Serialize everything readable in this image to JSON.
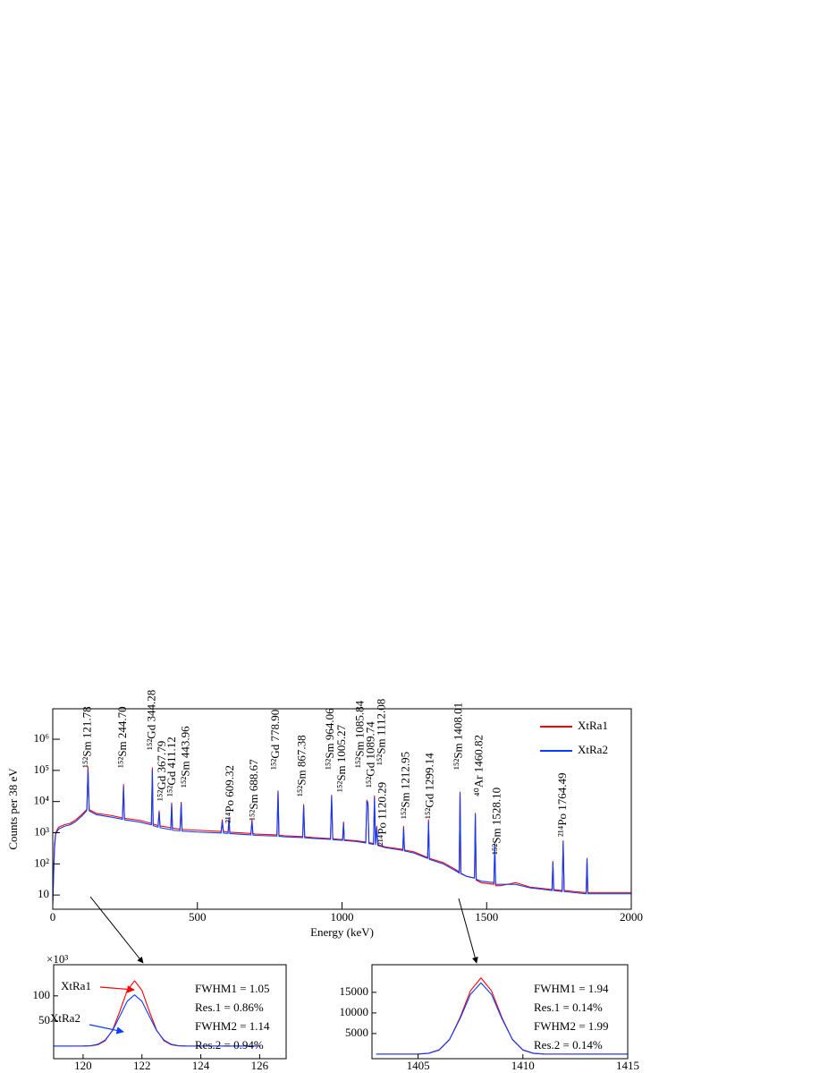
{
  "chart_data": [
    {
      "type": "line",
      "x_label": "Energy (keV)",
      "y_label": "Counts per 38 eV",
      "log_y": true,
      "legend": "upper right",
      "xlim": [
        0,
        2000
      ],
      "xticks": [
        0,
        500,
        1000,
        1500,
        2000
      ],
      "ylim": [
        3.5,
        9500000
      ],
      "yticks": [
        10,
        {
          "value": 100,
          "label": "10²"
        },
        {
          "value": 1000,
          "label": "10³"
        },
        {
          "value": 10000,
          "label": "10⁴"
        },
        {
          "value": 100000,
          "label": "10⁵"
        },
        {
          "value": 1000000,
          "label": "10⁶"
        }
      ],
      "x": [
        0,
        3,
        6,
        10,
        20,
        40,
        60,
        80,
        100,
        115,
        118,
        121.78,
        126,
        150,
        200,
        240,
        241,
        244.7,
        248,
        300,
        340,
        341,
        344.28,
        347,
        364,
        367.79,
        371,
        400,
        408,
        411.12,
        414,
        440,
        443.96,
        447,
        500,
        582,
        586,
        590,
        606,
        609.32,
        612,
        685,
        688.67,
        692,
        700,
        775,
        778.9,
        782,
        800,
        864,
        867.38,
        871,
        900,
        960,
        964.06,
        968,
        1000,
        1002,
        1005.27,
        1008,
        1050,
        1082,
        1085.84,
        1089.74,
        1093,
        1109,
        1112.08,
        1116,
        1120.29,
        1124,
        1150,
        1200,
        1210,
        1212.95,
        1216,
        1250,
        1296,
        1299.14,
        1302,
        1350,
        1400,
        1405,
        1408.01,
        1411,
        1430,
        1458,
        1460.82,
        1464,
        1480,
        1525,
        1528.1,
        1531,
        1550,
        1600,
        1650,
        1700,
        1726,
        1729,
        1732,
        1761,
        1764.49,
        1768,
        1800,
        1844,
        1847,
        1850,
        1900,
        2000
      ],
      "series": [
        {
          "name": "XtRa1",
          "color": "#ff0000",
          "values": [
            5,
            60,
            400,
            1000,
            1500,
            1800,
            2000,
            2600,
            3800,
            5200,
            5800,
            130000,
            5500,
            4200,
            3600,
            3000,
            3000,
            35000,
            2900,
            2500,
            2000,
            2000,
            120000,
            1900,
            1700,
            5000,
            1650,
            1500,
            1450,
            9000,
            1400,
            1300,
            9500,
            1280,
            1200,
            1100,
            2600,
            1100,
            1050,
            3000,
            1040,
            950,
            2600,
            940,
            900,
            850,
            22000,
            840,
            800,
            750,
            8000,
            740,
            700,
            650,
            16000,
            640,
            600,
            600,
            2200,
            590,
            550,
            500,
            11000,
            9000,
            480,
            450,
            15000,
            440,
            1600,
            420,
            350,
            300,
            290,
            1600,
            280,
            240,
            160,
            2600,
            150,
            110,
            60,
            55,
            20000,
            50,
            40,
            35,
            4200,
            30,
            25,
            22,
            450,
            20,
            20,
            25,
            18,
            16,
            15,
            120,
            15,
            14,
            550,
            14,
            13,
            12,
            150,
            12,
            12,
            12
          ]
        },
        {
          "name": "XtRa2",
          "color": "#0a3cff",
          "values": [
            5,
            40,
            300,
            900,
            1300,
            1600,
            1800,
            2300,
            3400,
            4800,
            5400,
            105000,
            5000,
            3800,
            3200,
            2700,
            2700,
            30000,
            2600,
            2200,
            1800,
            1800,
            100000,
            1700,
            1500,
            4500,
            1450,
            1300,
            1250,
            8000,
            1200,
            1150,
            8500,
            1130,
            1050,
            980,
            2300,
            970,
            950,
            2700,
            940,
            850,
            2300,
            840,
            820,
            780,
            20000,
            770,
            740,
            700,
            7000,
            690,
            660,
            610,
            14000,
            600,
            570,
            570,
            2000,
            560,
            520,
            470,
            10000,
            8500,
            450,
            420,
            13000,
            410,
            1400,
            390,
            330,
            280,
            270,
            1400,
            260,
            220,
            150,
            2300,
            140,
            100,
            55,
            50,
            18000,
            48,
            40,
            35,
            3800,
            32,
            28,
            25,
            420,
            22,
            22,
            22,
            17,
            15,
            14,
            110,
            14,
            13,
            500,
            13,
            12,
            11,
            140,
            11,
            11,
            11
          ]
        }
      ],
      "annotations": [
        {
          "text": "¹⁵²Sm 121.78",
          "color": "#b31b24"
        },
        {
          "text": "¹⁵²Sm 244.70",
          "color": "#b31b24"
        },
        {
          "text": "¹⁵²Gd 344.28",
          "color": "#1d22a8"
        },
        {
          "text": "¹⁵²Gd 367.79",
          "color": "#1d22a8"
        },
        {
          "text": "¹⁵²Gd 411.12",
          "color": "#1d22a8"
        },
        {
          "text": "¹⁵²Sm 443.96",
          "color": "#b31b24"
        },
        {
          "text": "²¹⁴Po 609.32",
          "color": "#000000"
        },
        {
          "text": "¹⁵²Sm 688.67",
          "color": "#b31b24"
        },
        {
          "text": "¹⁵²Gd 778.90",
          "color": "#1d22a8"
        },
        {
          "text": "¹⁵²Sm 867.38",
          "color": "#b31b24"
        },
        {
          "text": "¹⁵²Sm 964.06",
          "color": "#b31b24"
        },
        {
          "text": "¹⁵²Sm 1005.27",
          "color": "#b31b24"
        },
        {
          "text": "¹⁵²Sm 1085.84",
          "color": "#b31b24"
        },
        {
          "text": "¹⁵²Gd 1089.74",
          "color": "#1d22a8"
        },
        {
          "text": "¹⁵²Sm 1112.08",
          "color": "#b31b24"
        },
        {
          "text": "²¹⁴Po 1120.29",
          "color": "#000000"
        },
        {
          "text": "¹⁵²Sm 1212.95",
          "color": "#b31b24"
        },
        {
          "text": "¹⁵²Gd 1299.14",
          "color": "#1d22a8"
        },
        {
          "text": "¹⁵²Sm 1408.01",
          "color": "#b31b24"
        },
        {
          "text": "⁴⁰Ar 1460.82",
          "color": "#000000"
        },
        {
          "text": "¹⁵²Sm 1528.10",
          "color": "#b31b24"
        },
        {
          "text": "²¹⁴Po 1764.49",
          "color": "#000000"
        }
      ]
    },
    {
      "type": "line",
      "y_multiplier": "×10³",
      "xlim": [
        119,
        126.9
      ],
      "xticks": [
        120,
        122,
        124,
        126
      ],
      "ylim": [
        -25,
        162
      ],
      "yticks": [
        50,
        100
      ],
      "x": [
        119,
        119.5,
        120,
        120.25,
        120.5,
        120.75,
        121,
        121.25,
        121.5,
        121.75,
        122,
        122.25,
        122.5,
        122.75,
        123,
        123.25,
        123.5,
        124,
        126
      ],
      "series": [
        {
          "color": "#ff0000",
          "values": [
            0,
            0,
            0.1,
            0.5,
            2.6,
            10.6,
            31.6,
            69.4,
            111,
            130,
            111,
            69.4,
            31.6,
            10.6,
            2.6,
            0.5,
            0.1,
            0,
            0
          ]
        },
        {
          "color": "#0a3cff",
          "values": [
            0,
            0,
            0.2,
            0.8,
            3.6,
            12.1,
            30.7,
            59.9,
            89.3,
            102,
            89.3,
            59.9,
            30.7,
            12.1,
            3.6,
            0.8,
            0.2,
            0,
            0
          ]
        }
      ],
      "notes": [
        {
          "text": "XtRa1",
          "color": "#ff0000"
        },
        {
          "text": "XtRa2",
          "color": "#0a3cff"
        },
        {
          "text": "FWHM1 = 1.05",
          "color": "#ff1a1a"
        },
        {
          "text": "Res.1 = 0.86%",
          "color": "#ff1a1a"
        },
        {
          "text": "FWHM2 = 1.14",
          "color": "#2a4cff"
        },
        {
          "text": "Res.2 = 0.94%",
          "color": "#2a4cff"
        }
      ]
    },
    {
      "type": "line",
      "xlim": [
        1402.8,
        1415
      ],
      "xticks": [
        1405,
        1410,
        1415
      ],
      "ylim": [
        -1100,
        21700
      ],
      "yticks": [
        5000,
        10000,
        15000
      ],
      "x": [
        1403,
        1405,
        1405.5,
        1406,
        1406.5,
        1407,
        1407.5,
        1408,
        1408.5,
        1409,
        1409.5,
        1410,
        1410.5,
        1411,
        1413,
        1415
      ],
      "series": [
        {
          "color": "#ff0000",
          "values": [
            0,
            24,
            187,
            971,
            3530,
            8860,
            15390,
            18500,
            15390,
            8860,
            3530,
            971,
            187,
            24,
            0,
            0
          ]
        },
        {
          "color": "#0a3cff",
          "values": [
            0,
            32,
            216,
            1050,
            3580,
            8590,
            14520,
            17300,
            14520,
            8590,
            3580,
            1050,
            216,
            32,
            0,
            0
          ]
        }
      ],
      "notes": [
        {
          "text": "FWHM1 = 1.94",
          "color": "#ff1a1a"
        },
        {
          "text": "Res.1 = 0.14%",
          "color": "#ff1a1a"
        },
        {
          "text": "FWHM2 = 1.99",
          "color": "#2a4cff"
        },
        {
          "text": "Res.2 = 0.14%",
          "color": "#2a4cff"
        }
      ]
    }
  ]
}
